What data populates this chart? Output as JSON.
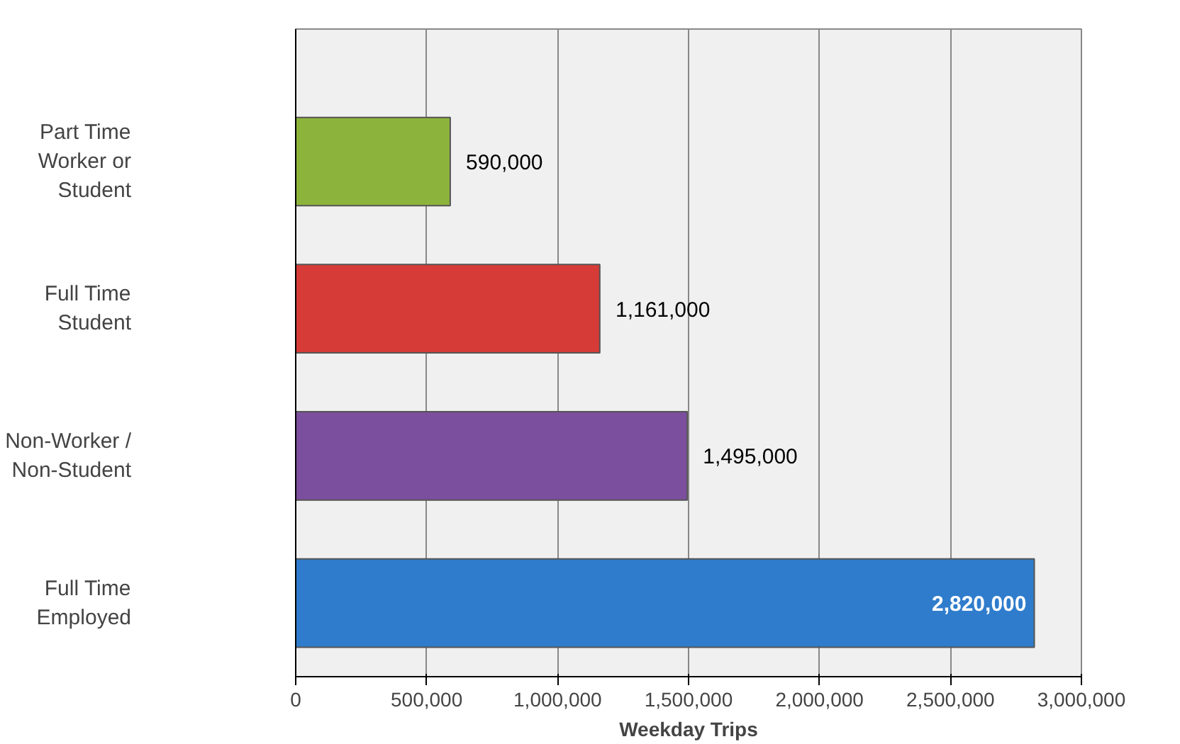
{
  "chart_data": {
    "type": "bar",
    "orientation": "horizontal",
    "xlabel": "Weekday Trips",
    "categories": [
      "Part Time Worker or Student",
      "Full Time Student",
      "Non-Worker / Non-Student",
      "Full Time Employed"
    ],
    "values": [
      590000,
      1161000,
      1495000,
      2820000
    ],
    "colors": [
      "#8cb43c",
      "#d63b38",
      "#7b4e9e",
      "#2f7ccc"
    ],
    "value_labels": [
      "590,000",
      "1,161,000",
      "1,495,000",
      "2,820,000"
    ],
    "xlim": [
      0,
      3000000
    ],
    "xticks": [
      {
        "value": 0,
        "label": "0"
      },
      {
        "value": 500000,
        "label": "500,000"
      },
      {
        "value": 1000000,
        "label": "1,000,000"
      },
      {
        "value": 1500000,
        "label": "1,500,000"
      },
      {
        "value": 2000000,
        "label": "2,000,000"
      },
      {
        "value": 2500000,
        "label": "2,500,000"
      },
      {
        "value": 3000000,
        "label": "3,000,000"
      }
    ],
    "grid": "x"
  }
}
